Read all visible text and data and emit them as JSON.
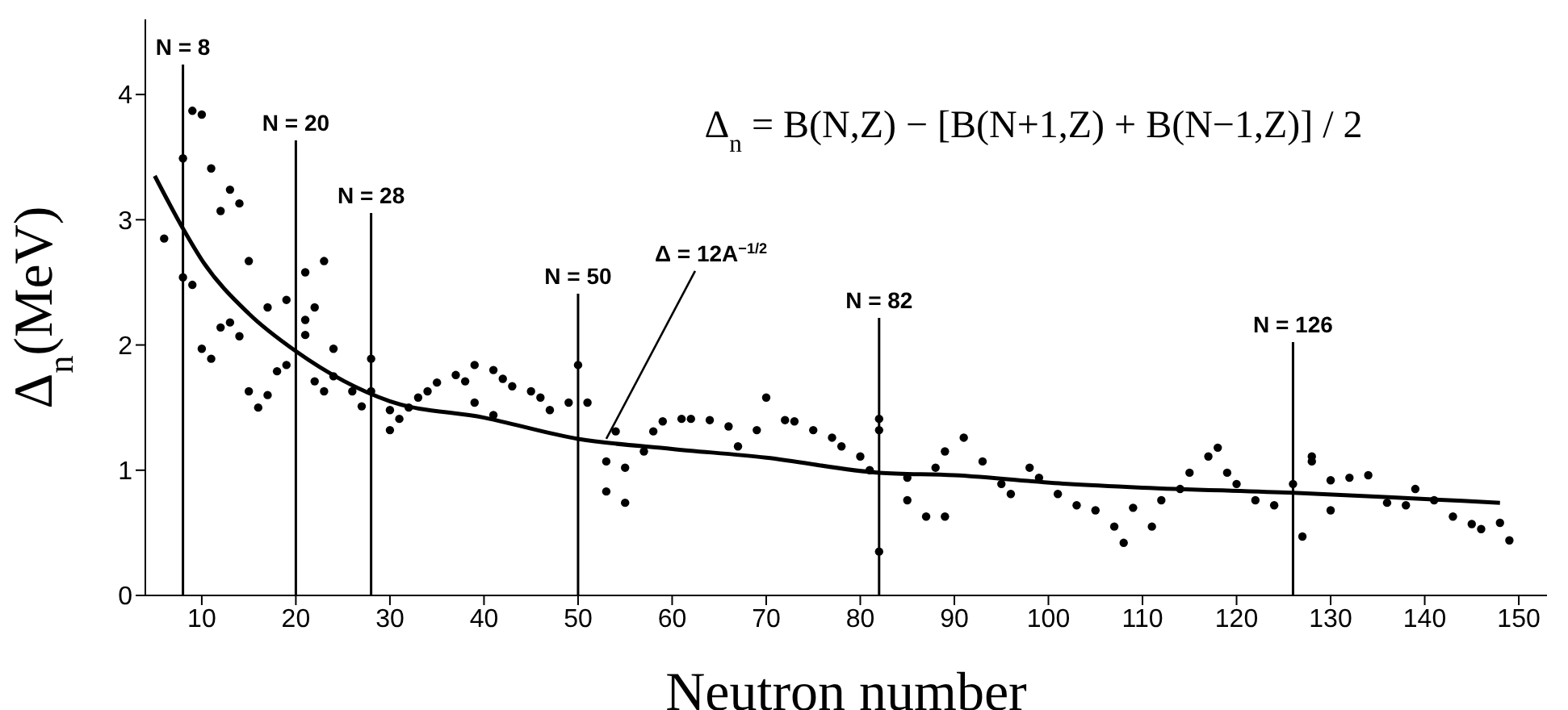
{
  "chart_data": {
    "type": "scatter",
    "xlabel": "Neutron number",
    "ylabel": "Δ$_{n}$(MeV)",
    "xlim": [
      4,
      153
    ],
    "xticks": [
      10,
      20,
      30,
      40,
      50,
      60,
      70,
      80,
      90,
      100,
      110,
      120,
      130,
      140,
      150
    ],
    "ylim": [
      0,
      4.6
    ],
    "yticks": [
      0,
      1,
      2,
      3,
      4
    ],
    "marker": "circle",
    "series": [
      {
        "color": "#000000",
        "x": [
          6,
          8,
          8,
          9,
          9,
          10,
          10,
          11,
          11,
          12,
          13,
          12,
          13,
          14,
          14,
          15,
          15,
          16,
          17,
          17,
          18,
          19,
          19,
          21,
          21,
          21,
          22,
          23,
          24,
          22,
          23,
          24,
          26,
          27,
          28,
          28,
          30,
          30,
          31,
          32,
          33,
          34,
          35,
          37,
          38,
          39,
          39,
          41,
          42,
          43,
          45,
          46,
          47,
          49,
          41,
          50,
          51,
          53,
          55,
          53,
          55,
          54,
          57,
          58,
          59,
          61,
          62,
          64,
          66,
          67,
          69,
          70,
          72,
          73,
          75,
          77,
          78,
          80,
          81,
          82,
          82,
          82,
          85,
          85,
          87,
          89,
          88,
          89,
          91,
          93,
          95,
          96,
          98,
          99,
          101,
          103,
          105,
          107,
          108,
          109,
          111,
          112,
          114,
          115,
          117,
          118,
          119,
          120,
          122,
          124,
          126,
          127,
          128,
          128,
          130,
          130,
          132,
          134,
          136,
          138,
          139,
          141,
          143,
          145,
          146,
          148,
          149
        ],
        "values": [
          2.85,
          3.49,
          2.54,
          2.48,
          3.87,
          3.84,
          1.97,
          1.89,
          3.41,
          2.14,
          2.18,
          3.07,
          3.24,
          3.13,
          2.07,
          2.67,
          1.63,
          1.5,
          1.6,
          2.3,
          1.79,
          2.36,
          1.84,
          2.58,
          2.2,
          2.08,
          2.3,
          2.67,
          1.97,
          1.71,
          1.63,
          1.75,
          1.63,
          1.51,
          1.89,
          1.63,
          1.48,
          1.32,
          1.41,
          1.5,
          1.58,
          1.63,
          1.7,
          1.76,
          1.71,
          1.54,
          1.84,
          1.8,
          1.73,
          1.67,
          1.63,
          1.58,
          1.48,
          1.54,
          1.44,
          1.84,
          1.54,
          1.07,
          1.02,
          0.83,
          0.74,
          1.31,
          1.15,
          1.31,
          1.39,
          1.41,
          1.41,
          1.4,
          1.35,
          1.19,
          1.32,
          1.58,
          1.4,
          1.39,
          1.32,
          1.26,
          1.19,
          1.11,
          1.0,
          1.41,
          1.32,
          0.35,
          0.76,
          0.94,
          0.63,
          0.63,
          1.02,
          1.15,
          1.26,
          1.07,
          0.89,
          0.81,
          1.02,
          0.94,
          0.81,
          0.72,
          0.68,
          0.55,
          0.42,
          0.7,
          0.55,
          0.76,
          0.85,
          0.98,
          1.11,
          1.18,
          0.98,
          0.89,
          0.76,
          0.72,
          0.89,
          0.47,
          1.07,
          1.11,
          0.92,
          0.68,
          0.94,
          0.96,
          0.74,
          0.72,
          0.85,
          0.76,
          0.63,
          0.57,
          0.53,
          0.58,
          0.44
        ]
      },
      {
        "type": "line",
        "color": "#000000",
        "marker": "none",
        "x": [
          5,
          8,
          10,
          15,
          20,
          30,
          40,
          50,
          60,
          70,
          82,
          90,
          102,
          110,
          126,
          140,
          148
        ],
        "values": [
          3.35,
          2.93,
          2.68,
          2.25,
          1.95,
          1.55,
          1.42,
          1.25,
          1.17,
          1.1,
          0.98,
          0.96,
          0.89,
          0.86,
          0.82,
          0.77,
          0.74
        ]
      }
    ],
    "ref_lines": [
      {
        "axis": "x",
        "value": 8,
        "label": "N = 8",
        "color": "#000000"
      },
      {
        "axis": "x",
        "value": 20,
        "label": "N = 20",
        "color": "#000000"
      },
      {
        "axis": "x",
        "value": 28,
        "label": "N = 28",
        "color": "#000000"
      },
      {
        "axis": "x",
        "value": 50,
        "label": "N = 50",
        "color": "#000000"
      },
      {
        "axis": "x",
        "value": 82,
        "label": "N = 82",
        "color": "#000000"
      },
      {
        "axis": "x",
        "value": 126,
        "label": "N = 126",
        "color": "#000000"
      }
    ],
    "annotations": [
      {
        "text": "Δ = 12A$^{−1/2}$",
        "x": 53,
        "y": 1.25
      },
      "Δ$_{n}$ = B(N,Z) − [B(N+1,Z) + B(N−1,Z)] / 2"
    ]
  }
}
